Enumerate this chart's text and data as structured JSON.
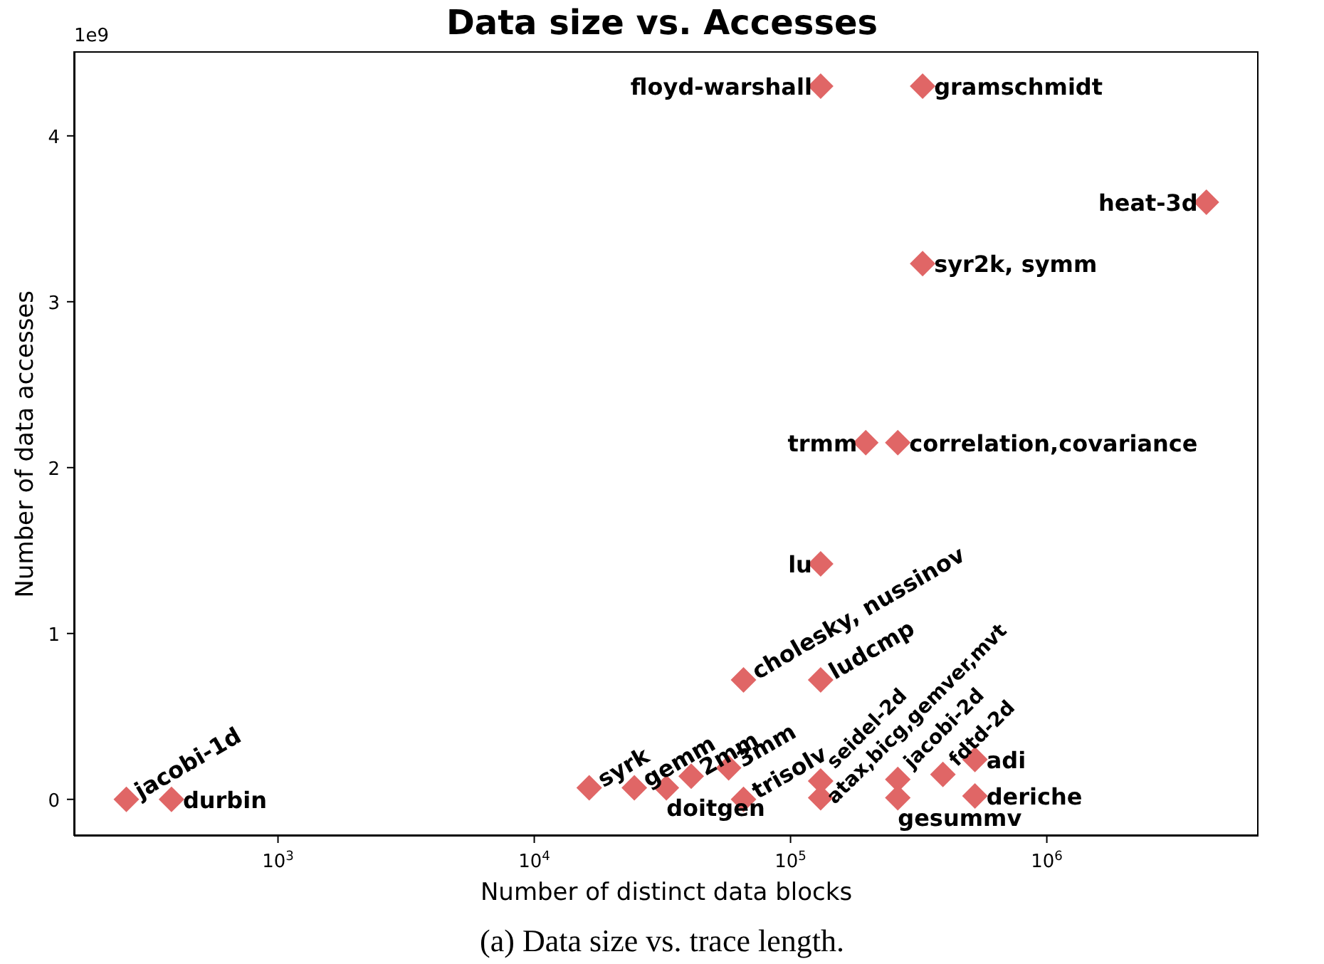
{
  "chart_data": {
    "type": "scatter",
    "title": "Data size vs. Accesses",
    "xlabel": "Number of distinct data blocks",
    "ylabel": "Number of data accesses",
    "log": "x",
    "grid": false,
    "marker": "diamond",
    "xlim": [
      160,
      6700000
    ],
    "xticks": [
      {
        "value": 1000,
        "label": "10$^{3}$"
      },
      {
        "value": 10000,
        "label": "10$^{4}$"
      },
      {
        "value": 100000,
        "label": "10$^{5}$"
      },
      {
        "value": 1000000,
        "label": "10$^{6}$"
      }
    ],
    "ylim": [
      -0.22,
      4.51
    ],
    "yticks": [
      0,
      1,
      2,
      3,
      4
    ],
    "series": [
      {
        "color": "#e06666",
        "x": [
          256,
          384,
          16384,
          24576,
          32768,
          40960,
          57344,
          65536,
          131072,
          131072,
          262144,
          262144,
          393216,
          524288,
          524288,
          65536,
          131072,
          131072,
          196608,
          262144,
          327680,
          327680,
          131072,
          4194304
        ],
        "values": [
          0,
          0,
          0.07,
          0.07,
          0.07,
          0.14,
          0.19,
          0,
          0.11,
          0.01,
          0.12,
          0.01,
          0.15,
          0.24,
          0.02,
          0.72,
          0.72,
          1.42,
          2.15,
          2.15,
          3.23,
          4.3,
          4.3,
          3.6
        ]
      }
    ],
    "annotations": [
      "1e9",
      "(a) Data size vs. trace length.",
      {
        "text": "jacobi-1d",
        "x": 256,
        "y": 0
      },
      {
        "text": "durbin",
        "x": 384,
        "y": 0
      },
      {
        "text": "syrk",
        "x": 16384,
        "y": 0.07
      },
      {
        "text": "gemm",
        "x": 24576,
        "y": 0.07
      },
      {
        "text": "doitgen",
        "x": 32768,
        "y": 0.07
      },
      {
        "text": "2mm",
        "x": 40960,
        "y": 0.14
      },
      {
        "text": "3mm",
        "x": 57344,
        "y": 0.19
      },
      {
        "text": "trisolv",
        "x": 65536,
        "y": 0
      },
      {
        "text": "seidel-2d",
        "x": 131072,
        "y": 0.11
      },
      {
        "text": "atax,bicg,gemver,mvt",
        "x": 131072,
        "y": 0.01
      },
      {
        "text": "jacobi-2d",
        "x": 262144,
        "y": 0.12
      },
      {
        "text": "gesummv",
        "x": 262144,
        "y": 0.01
      },
      {
        "text": "fdtd-2d",
        "x": 393216,
        "y": 0.15
      },
      {
        "text": "adi",
        "x": 524288,
        "y": 0.24
      },
      {
        "text": "deriche",
        "x": 524288,
        "y": 0.02
      },
      {
        "text": "cholesky, nussinov",
        "x": 65536,
        "y": 0.72
      },
      {
        "text": "ludcmp",
        "x": 131072,
        "y": 0.72
      },
      {
        "text": "lu",
        "x": 131072,
        "y": 1.42
      },
      {
        "text": "trmm",
        "x": 196608,
        "y": 2.15
      },
      {
        "text": "correlation,covariance",
        "x": 262144,
        "y": 2.15
      },
      {
        "text": "syr2k, symm",
        "x": 327680,
        "y": 3.23
      },
      {
        "text": "gramschmidt",
        "x": 327680,
        "y": 4.3
      },
      {
        "text": "floyd-warshall",
        "x": 131072,
        "y": 4.3
      },
      {
        "text": "heat-3d",
        "x": 4194304,
        "y": 3.6
      }
    ]
  }
}
